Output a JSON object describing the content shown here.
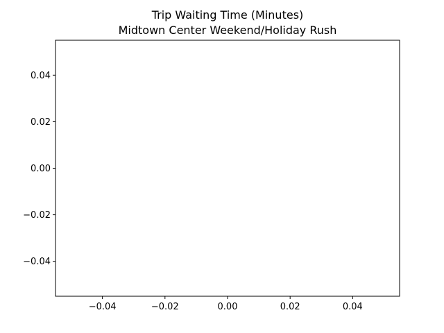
{
  "chart_data": {
    "type": "line",
    "title": "Trip Waiting Time (Minutes)",
    "subtitle": "Midtown Center Weekend/Holiday Rush",
    "xlabel": "",
    "ylabel": "",
    "xlim": [
      -0.055,
      0.055
    ],
    "ylim": [
      -0.055,
      0.055
    ],
    "x_ticks": [
      -0.04,
      -0.02,
      0.0,
      0.02,
      0.04
    ],
    "x_tick_labels": [
      "−0.04",
      "−0.02",
      "0.00",
      "0.02",
      "0.04"
    ],
    "y_ticks": [
      -0.04,
      -0.02,
      0.0,
      0.02,
      0.04
    ],
    "y_tick_labels": [
      "−0.04",
      "−0.02",
      "0.00",
      "0.02",
      "0.04"
    ],
    "grid": false,
    "series": [
      {
        "x": [],
        "y": []
      }
    ]
  }
}
